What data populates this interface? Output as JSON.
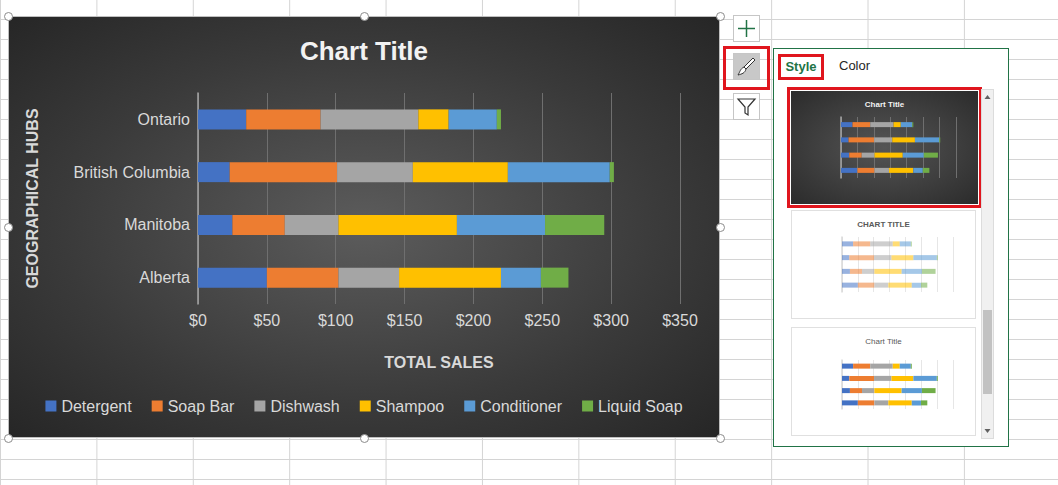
{
  "chart_data": {
    "type": "bar",
    "title": "Chart Title",
    "orientation": "horizontal",
    "stacked": true,
    "grid": true,
    "legend": "bottom",
    "x_label": "TOTAL SALES",
    "y_label": "GEOGRAPHICAL HUBS",
    "categories": [
      "Alberta",
      "Manitoba",
      "British Columbia",
      "Ontario"
    ],
    "xlim": [
      0,
      350
    ],
    "xticks": [
      {
        "value": 0,
        "label": "$0"
      },
      {
        "value": 50,
        "label": "$50"
      },
      {
        "value": 100,
        "label": "$100"
      },
      {
        "value": 150,
        "label": "$150"
      },
      {
        "value": 200,
        "label": "$200"
      },
      {
        "value": 250,
        "label": "$250"
      },
      {
        "value": 300,
        "label": "$300"
      },
      {
        "value": 350,
        "label": "$350"
      }
    ],
    "series": [
      {
        "name": "Detergent",
        "color": "#4472c4",
        "values": [
          50,
          25,
          23,
          35
        ]
      },
      {
        "name": "Soap Bar",
        "color": "#ed7d31",
        "values": [
          52,
          38,
          78,
          54
        ]
      },
      {
        "name": "Dishwash",
        "color": "#a5a5a5",
        "values": [
          44,
          39,
          55,
          71
        ]
      },
      {
        "name": "Shampoo",
        "color": "#ffc000",
        "values": [
          74,
          86,
          69,
          22
        ]
      },
      {
        "name": "Conditioner",
        "color": "#5b9bd5",
        "values": [
          29,
          64,
          74,
          35
        ]
      },
      {
        "name": "Liquid Soap",
        "color": "#70ad47",
        "values": [
          20,
          43,
          3,
          3
        ]
      }
    ]
  },
  "panel": {
    "tabs": [
      "Style",
      "Color"
    ],
    "styles": [
      {
        "title": "Chart Title"
      },
      {
        "title": "CHART TITLE"
      },
      {
        "title": "Chart Title"
      }
    ]
  }
}
